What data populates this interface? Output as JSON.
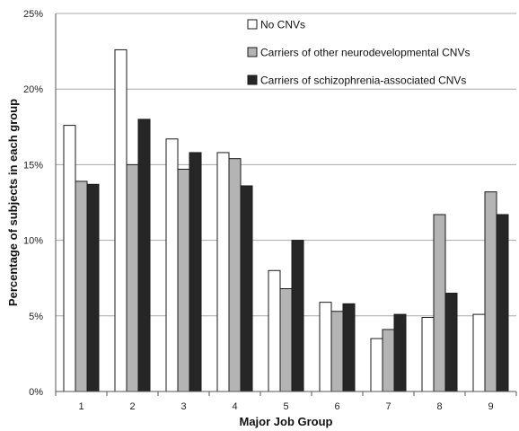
{
  "chart_data": {
    "type": "bar",
    "title": "",
    "xlabel": "Major Job Group",
    "ylabel": "Percentage of subjects in each group",
    "categories": [
      "1",
      "2",
      "3",
      "4",
      "5",
      "6",
      "7",
      "8",
      "9"
    ],
    "series": [
      {
        "name": "No CNVs",
        "color": "#ffffff",
        "values": [
          17.6,
          22.6,
          16.7,
          15.8,
          8.0,
          5.9,
          3.5,
          4.9,
          5.1
        ]
      },
      {
        "name": "Carriers of other neurodevelopmental CNVs",
        "color": "#b4b4b4",
        "values": [
          13.9,
          15.0,
          14.7,
          15.4,
          6.8,
          5.3,
          4.1,
          11.7,
          13.2
        ]
      },
      {
        "name": "Carriers of schizophrenia-associated CNVs",
        "color": "#262626",
        "values": [
          13.7,
          18.0,
          15.8,
          13.6,
          10.0,
          5.8,
          5.1,
          6.5,
          11.7
        ]
      }
    ],
    "ylim": [
      0,
      25
    ],
    "yticks": [
      0,
      5,
      10,
      15,
      20,
      25
    ],
    "ytick_labels": [
      "0%",
      "5%",
      "10%",
      "15%",
      "20%",
      "25%"
    ],
    "grid": true,
    "legend_position": "top-right"
  }
}
